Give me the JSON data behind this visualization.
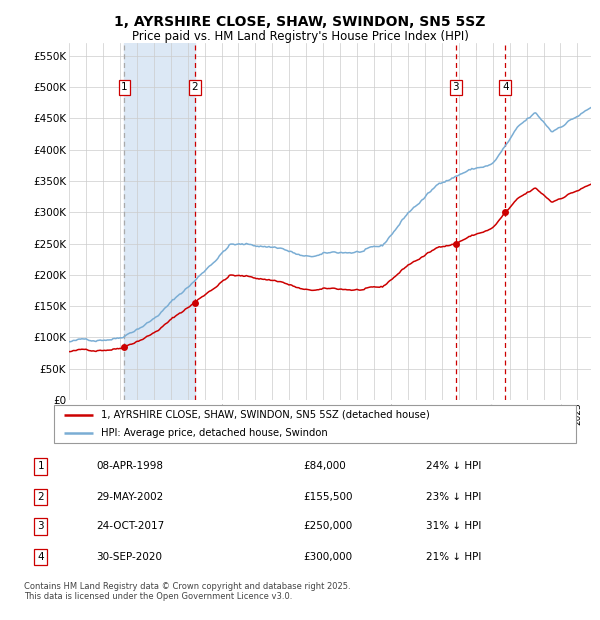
{
  "title": "1, AYRSHIRE CLOSE, SHAW, SWINDON, SN5 5SZ",
  "subtitle": "Price paid vs. HM Land Registry's House Price Index (HPI)",
  "title_fontsize": 10,
  "subtitle_fontsize": 8.5,
  "background_color": "#ffffff",
  "plot_bg_color": "#ffffff",
  "grid_color": "#cccccc",
  "hpi_line_color": "#7aadd4",
  "price_line_color": "#cc0000",
  "purchase_marker_color": "#cc0000",
  "shade_color": "#dce8f5",
  "dashed_line_color_red": "#cc0000",
  "dashed_line_color_gray": "#aaaaaa",
  "ylim": [
    0,
    570000
  ],
  "yticks": [
    0,
    50000,
    100000,
    150000,
    200000,
    250000,
    300000,
    350000,
    400000,
    450000,
    500000,
    550000
  ],
  "ytick_labels": [
    "£0",
    "£50K",
    "£100K",
    "£150K",
    "£200K",
    "£250K",
    "£300K",
    "£350K",
    "£400K",
    "£450K",
    "£500K",
    "£550K"
  ],
  "xmin": 1995.0,
  "xmax": 2025.8,
  "purchases": [
    {
      "num": 1,
      "date": "08-APR-1998",
      "year": 1998.27,
      "price": 84000,
      "hpi_pct": "24% ↓ HPI"
    },
    {
      "num": 2,
      "date": "29-MAY-2002",
      "year": 2002.41,
      "price": 155500,
      "hpi_pct": "23% ↓ HPI"
    },
    {
      "num": 3,
      "date": "24-OCT-2017",
      "year": 2017.81,
      "price": 250000,
      "hpi_pct": "31% ↓ HPI"
    },
    {
      "num": 4,
      "date": "30-SEP-2020",
      "year": 2020.75,
      "price": 300000,
      "hpi_pct": "21% ↓ HPI"
    }
  ],
  "legend_line1": "1, AYRSHIRE CLOSE, SHAW, SWINDON, SN5 5SZ (detached house)",
  "legend_line2": "HPI: Average price, detached house, Swindon",
  "footnote": "Contains HM Land Registry data © Crown copyright and database right 2025.\nThis data is licensed under the Open Government Licence v3.0."
}
